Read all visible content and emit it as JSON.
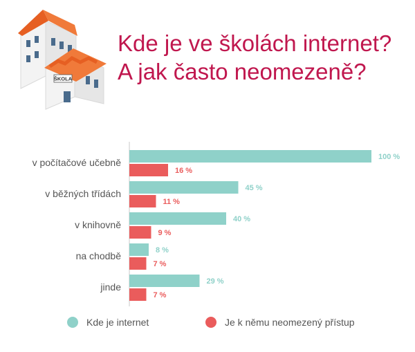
{
  "header": {
    "title_line1": "Kde je ve školách internet?",
    "title_line2": "A jak často neomezeně?",
    "building_sign": "ŠKOLA"
  },
  "colors": {
    "title": "#c0174e",
    "internet": "#8fd1c9",
    "unlimited": "#ea5c5c",
    "roof": "#ea6a2a",
    "building": "#f3f3f3",
    "window": "#4a6b8c"
  },
  "legend": {
    "internet_label": "Kde je internet",
    "unlimited_label": "Je k němu neomezený přístup"
  },
  "chart_data": {
    "type": "bar",
    "orientation": "horizontal",
    "categories": [
      "v počítačové učebně",
      "v běžných třídách",
      "v knihovně",
      "na chodbě",
      "jinde"
    ],
    "series": [
      {
        "name": "Kde je internet",
        "values": [
          100,
          45,
          40,
          8,
          29
        ],
        "labels": [
          "100 %",
          "45 %",
          "40 %",
          "8 %",
          "29 %"
        ]
      },
      {
        "name": "Je k němu neomezený přístup",
        "values": [
          16,
          11,
          9,
          7,
          7
        ],
        "labels": [
          "16 %",
          "11 %",
          "9 %",
          "7 %",
          "7 %"
        ]
      }
    ],
    "xlim": [
      0,
      100
    ],
    "grid": false,
    "legend_position": "bottom"
  }
}
